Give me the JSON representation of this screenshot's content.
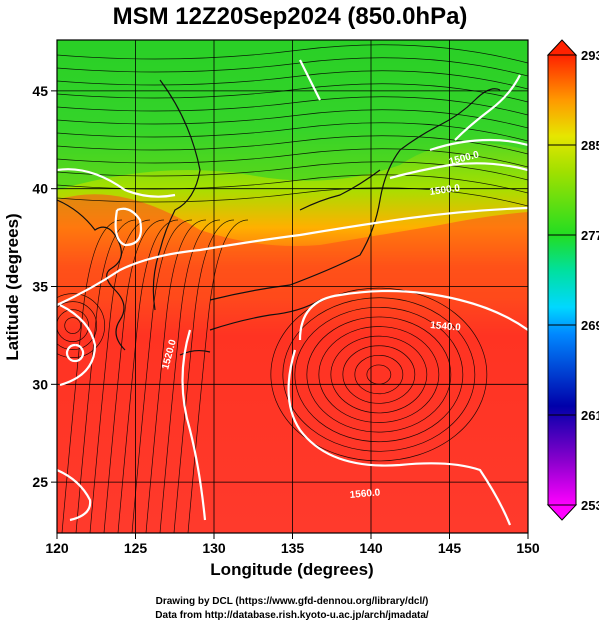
{
  "title": "MSM 12Z20Sep2024 (850.0hPa)",
  "footer": {
    "line1": "Drawing by DCL (https://www.gfd-dennou.org/library/dcl/)",
    "line2": "Data from http://database.rish.kyoto-u.ac.jp/arch/jmadata/"
  },
  "chart_data": {
    "type": "map",
    "title": "MSM 12Z20Sep2024 (850.0hPa)",
    "xlabel": "Longitude (degrees)",
    "ylabel": "Latitude  (degrees)",
    "xlim": [
      120,
      150
    ],
    "ylim": [
      22.4,
      47.6
    ],
    "xticks": [
      120,
      125,
      130,
      135,
      140,
      145,
      150
    ],
    "yticks": [
      25,
      30,
      35,
      40,
      45
    ],
    "grid": true,
    "colorbar": {
      "min": 253,
      "max": 293,
      "ticks": [
        "293",
        "285",
        "277",
        "269",
        "261",
        "253"
      ],
      "colors": [
        "#ff00ff",
        "#0000aa",
        "#0055ff",
        "#00c8ff",
        "#00e0a0",
        "#22dd22",
        "#a0e000",
        "#e6e600",
        "#ff8800",
        "#ff2200"
      ]
    },
    "contour_labels": [
      "1500.0",
      "1520.0",
      "1540.0",
      "1560.0",
      "1500.0"
    ],
    "colors": {
      "north": "#22cc22",
      "mid": "#d4e800",
      "transition": "#ff8c1a",
      "south": "#ff2d20",
      "contour": "#ffffff",
      "coast": "#111111"
    }
  }
}
